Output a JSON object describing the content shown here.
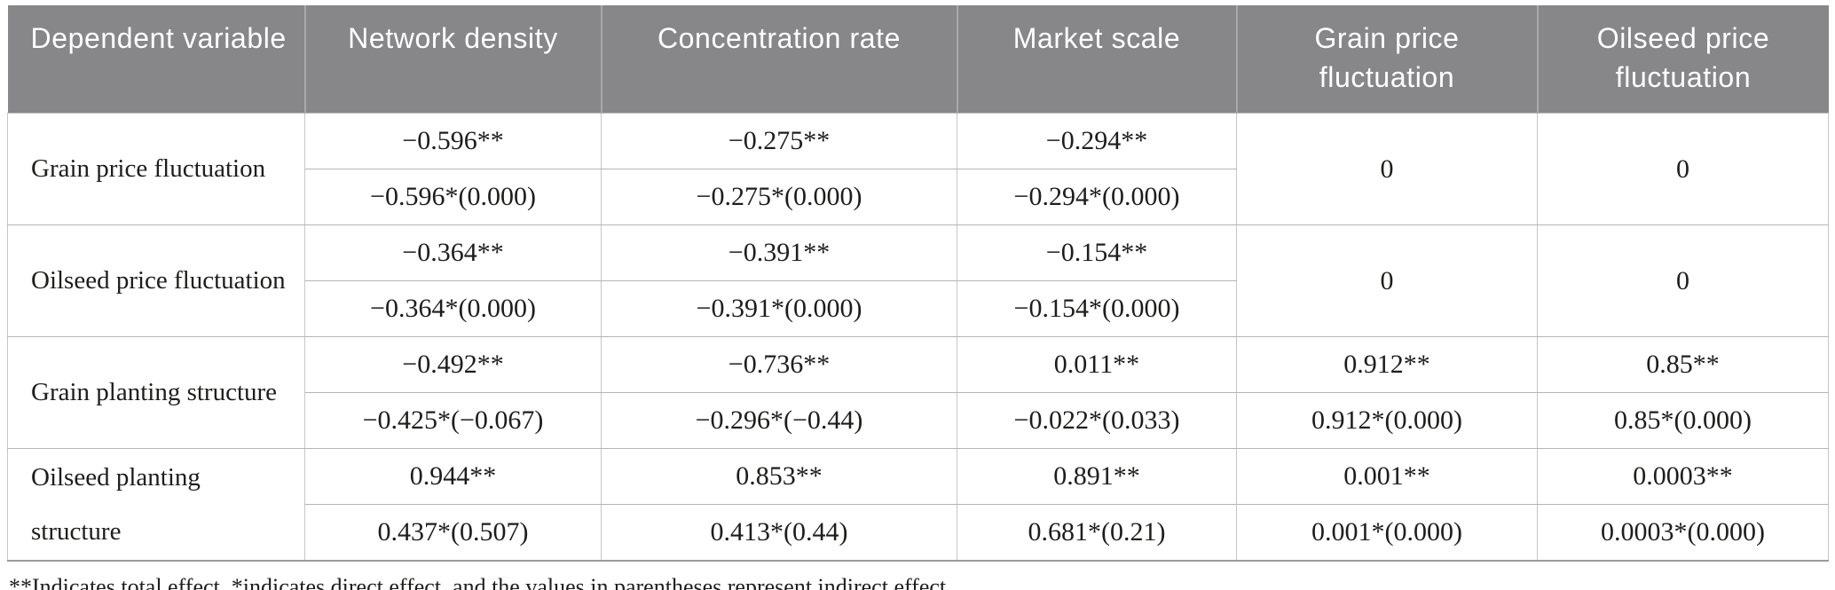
{
  "colors": {
    "header_bg": "#87878a",
    "header_text": "#ffffff",
    "grid_line": "#c6c6c6",
    "outer_bottom_border": "#9b9b9b",
    "body_text": "#1d1d1b"
  },
  "table": {
    "columns": [
      "Dependent variable",
      "Network density",
      "Concentration rate",
      "Market scale",
      "Grain price fluctuation",
      "Oilseed price fluctuation"
    ],
    "rows": [
      {
        "label": "Grain price fluctuation",
        "total": [
          "−0.596**",
          "−0.275**",
          "−0.294**"
        ],
        "direct": [
          "−0.596*(0.000)",
          "−0.275*(0.000)",
          "−0.294*(0.000)"
        ],
        "grain_effect": "0",
        "oilseed_effect": "0"
      },
      {
        "label": "Oilseed price fluctuation",
        "total": [
          "−0.364**",
          "−0.391**",
          "−0.154**"
        ],
        "direct": [
          "−0.364*(0.000)",
          "−0.391*(0.000)",
          "−0.154*(0.000)"
        ],
        "grain_effect": "0",
        "oilseed_effect": "0"
      },
      {
        "label": "Grain planting structure",
        "total": [
          "−0.492**",
          "−0.736**",
          "0.011**",
          "0.912**",
          "0.85**"
        ],
        "direct": [
          "−0.425*(−0.067)",
          "−0.296*(−0.44)",
          "−0.022*(0.033)",
          "0.912*(0.000)",
          "0.85*(0.000)"
        ]
      },
      {
        "label": "Oilseed planting structure",
        "total": [
          "0.944**",
          "0.853**",
          "0.891**",
          "0.001**",
          "0.0003**"
        ],
        "direct": [
          "0.437*(0.507)",
          "0.413*(0.44)",
          "0.681*(0.21)",
          "0.001*(0.000)",
          "0.0003*(0.000)"
        ]
      }
    ],
    "footnote": "**Indicates total effect, *indicates direct effect, and the values in parentheses represent indirect effect."
  }
}
